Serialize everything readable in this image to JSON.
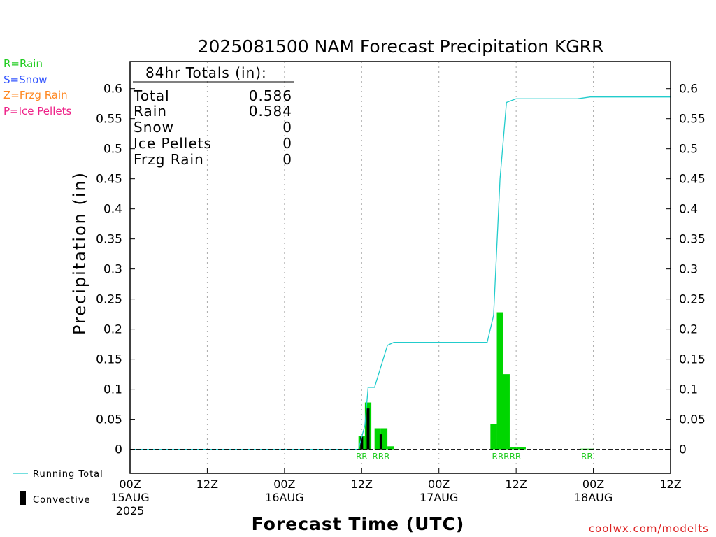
{
  "title": "2025081500 NAM Forecast Precipitation KGRR",
  "legend_types": [
    {
      "text": "R=Rain",
      "color": "#22cc22"
    },
    {
      "text": "S=Snow",
      "color": "#3355ff"
    },
    {
      "text": "Z=Frzg Rain",
      "color": "#ff8822"
    },
    {
      "text": "P=Ice Pellets",
      "color": "#ee2288"
    }
  ],
  "legend_lines": {
    "running_total": "Running Total",
    "convective": "Convective"
  },
  "totals": {
    "header": "84hr Totals (in):",
    "rows": [
      {
        "label": "Total",
        "value": "0.586"
      },
      {
        "label": "Rain",
        "value": "0.584"
      },
      {
        "label": "Snow",
        "value": "0"
      },
      {
        "label": "Ice Pellets",
        "value": "0"
      },
      {
        "label": "Frzg Rain",
        "value": "0"
      }
    ]
  },
  "credit": "coolwx.com/modelts",
  "colors": {
    "rain": "#00d600",
    "convective": "#000000",
    "running_total": "#22cccc",
    "grid": "#aaaaaa"
  },
  "chart_data": {
    "type": "bar",
    "title": "2025081500 NAM Forecast Precipitation KGRR",
    "xlabel": "Forecast Time (UTC)",
    "ylabel": "Precipitation (in)",
    "xlim_hours": [
      0,
      84
    ],
    "ylim": [
      -0.04,
      0.645
    ],
    "yticks": [
      "0",
      "0.05",
      "0.1",
      "0.15",
      "0.2",
      "0.25",
      "0.3",
      "0.35",
      "0.4",
      "0.45",
      "0.5",
      "0.55",
      "0.6"
    ],
    "xticks": [
      {
        "hour": 0,
        "lines": [
          "00Z",
          "15AUG",
          "2025"
        ]
      },
      {
        "hour": 12,
        "lines": [
          "12Z"
        ]
      },
      {
        "hour": 24,
        "lines": [
          "00Z",
          "16AUG"
        ]
      },
      {
        "hour": 36,
        "lines": [
          "12Z"
        ]
      },
      {
        "hour": 48,
        "lines": [
          "00Z",
          "17AUG"
        ]
      },
      {
        "hour": 60,
        "lines": [
          "12Z"
        ]
      },
      {
        "hour": 72,
        "lines": [
          "00Z",
          "18AUG"
        ]
      },
      {
        "hour": 84,
        "lines": [
          "12Z"
        ]
      }
    ],
    "grid_hours": [
      12,
      24,
      36,
      48,
      60,
      72
    ],
    "bar_width_hours": 1,
    "precip_bars": [
      {
        "hour": 36,
        "value": 0.022
      },
      {
        "hour": 37,
        "value": 0.078
      },
      {
        "hour": 38.5,
        "value": 0.035
      },
      {
        "hour": 39.5,
        "value": 0.035
      },
      {
        "hour": 40.5,
        "value": 0.005
      },
      {
        "hour": 56.5,
        "value": 0.042
      },
      {
        "hour": 57.5,
        "value": 0.228
      },
      {
        "hour": 58.5,
        "value": 0.125
      },
      {
        "hour": 59.5,
        "value": 0.003
      },
      {
        "hour": 60.5,
        "value": 0.003
      },
      {
        "hour": 61,
        "value": 0.003
      },
      {
        "hour": 70.5,
        "value": 0.001
      },
      {
        "hour": 71.5,
        "value": 0.001
      }
    ],
    "convective_bars": [
      {
        "hour": 36,
        "value": 0.021
      },
      {
        "hour": 37,
        "value": 0.068
      },
      {
        "hour": 39,
        "value": 0.025
      }
    ],
    "running_total": [
      {
        "hour": 0,
        "value": 0
      },
      {
        "hour": 35.5,
        "value": 0
      },
      {
        "hour": 36.5,
        "value": 0.04
      },
      {
        "hour": 37,
        "value": 0.103
      },
      {
        "hour": 38,
        "value": 0.103
      },
      {
        "hour": 40,
        "value": 0.173
      },
      {
        "hour": 41,
        "value": 0.178
      },
      {
        "hour": 55.5,
        "value": 0.178
      },
      {
        "hour": 56.5,
        "value": 0.223
      },
      {
        "hour": 57.5,
        "value": 0.45
      },
      {
        "hour": 58.5,
        "value": 0.577
      },
      {
        "hour": 60,
        "value": 0.583
      },
      {
        "hour": 69.5,
        "value": 0.583
      },
      {
        "hour": 71.5,
        "value": 0.586
      },
      {
        "hour": 84,
        "value": 0.586
      }
    ],
    "type_labels": [
      {
        "hour": 36,
        "text": "RR"
      },
      {
        "hour": 39,
        "text": "RRR"
      },
      {
        "hour": 58.5,
        "text": "RRRRR"
      },
      {
        "hour": 71,
        "text": "RR"
      }
    ]
  }
}
